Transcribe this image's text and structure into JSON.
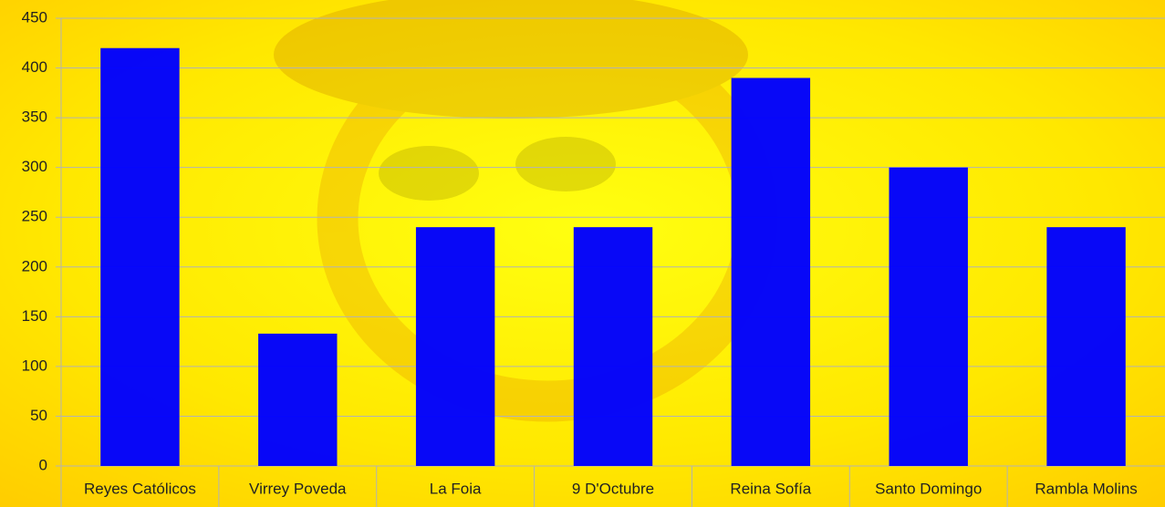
{
  "chart_data": {
    "type": "bar",
    "categories": [
      "Reyes Católicos",
      "Virrey Poveda",
      "La Foia",
      "9 D'Octubre",
      "Reina Sofía",
      "Santo Domingo",
      "Rambla Molins"
    ],
    "values": [
      420,
      133,
      240,
      240,
      390,
      300,
      240
    ],
    "color": "#0000ff",
    "ylim": [
      0,
      450
    ],
    "yticks": [
      0,
      50,
      100,
      150,
      200,
      250,
      300,
      350,
      400,
      450
    ],
    "grid": true
  }
}
